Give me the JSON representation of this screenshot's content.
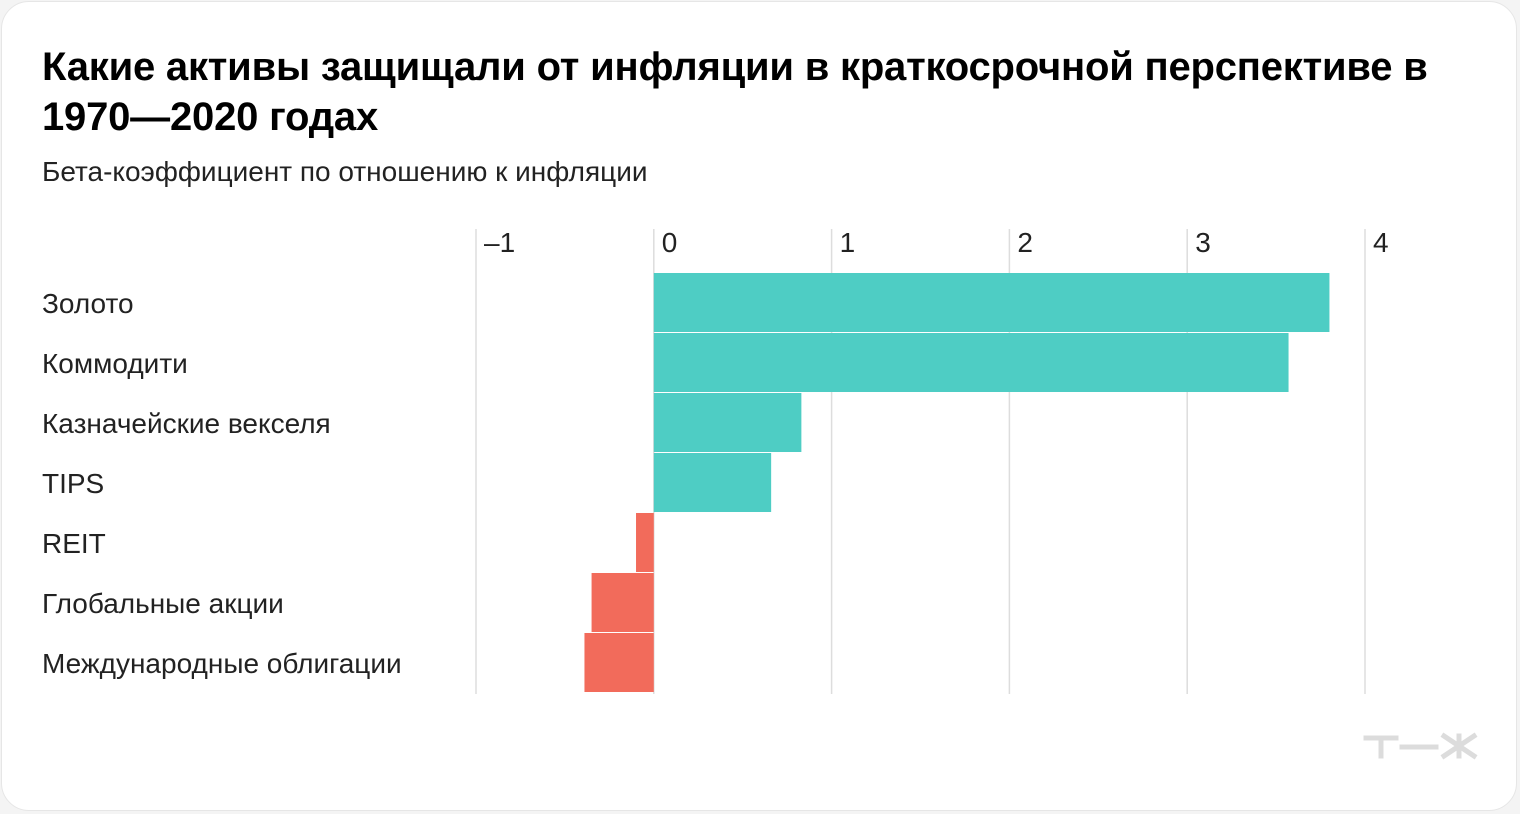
{
  "title": "Какие активы защищали от инфляции в краткосрочной перспективе в 1970—2020 годах",
  "subtitle": "Бета-коэффициент по отношению к инфляции",
  "logo_text": "т—ж",
  "colors": {
    "positive": "#4ecdc4",
    "negative": "#f26b5b",
    "grid": "#dddddd",
    "logo": "#dcdcdc"
  },
  "chart_data": {
    "type": "bar",
    "orientation": "horizontal",
    "categories": [
      "Золото",
      "Коммодити",
      "Казначейские векселя",
      "TIPS",
      "REIT",
      "Глобальные акции",
      "Международные облигации"
    ],
    "values": [
      3.8,
      3.57,
      0.83,
      0.66,
      -0.1,
      -0.35,
      -0.39
    ],
    "xlim": [
      -1,
      4
    ],
    "ticks": [
      -1,
      0,
      1,
      2,
      3,
      4
    ],
    "tick_labels": [
      "–1",
      "0",
      "1",
      "2",
      "3",
      "4"
    ],
    "grid": true,
    "axis_position": "top"
  }
}
